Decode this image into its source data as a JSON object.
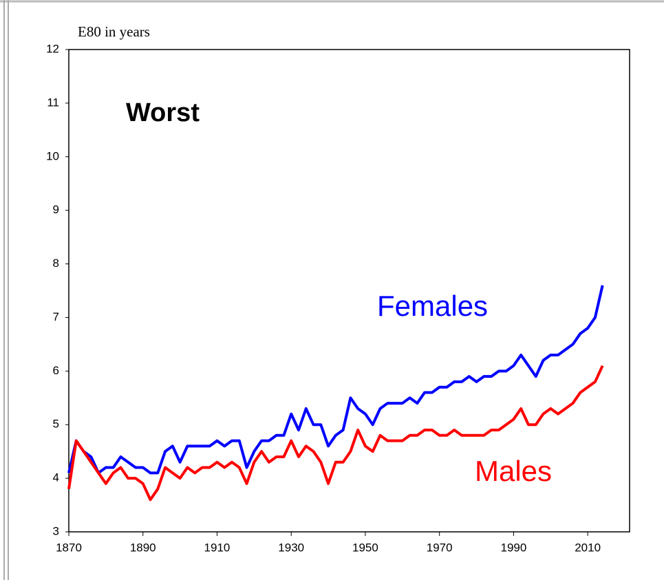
{
  "chart_data": {
    "type": "line",
    "y_label": "E80 in years",
    "annotation": "Worst",
    "x": [
      1870,
      1872,
      1874,
      1876,
      1878,
      1880,
      1882,
      1884,
      1886,
      1888,
      1890,
      1892,
      1894,
      1896,
      1898,
      1900,
      1902,
      1904,
      1906,
      1908,
      1910,
      1912,
      1914,
      1916,
      1918,
      1920,
      1922,
      1924,
      1926,
      1928,
      1930,
      1932,
      1934,
      1936,
      1938,
      1940,
      1942,
      1944,
      1946,
      1948,
      1950,
      1952,
      1954,
      1956,
      1958,
      1960,
      1962,
      1964,
      1966,
      1968,
      1970,
      1972,
      1974,
      1976,
      1978,
      1980,
      1982,
      1984,
      1986,
      1988,
      1990,
      1992,
      1994,
      1996,
      1998,
      2000,
      2002,
      2004,
      2006,
      2008,
      2010,
      2012,
      2014
    ],
    "series": [
      {
        "name": "Females",
        "color": "#0000ff",
        "values": [
          4.1,
          4.7,
          4.5,
          4.4,
          4.1,
          4.2,
          4.2,
          4.4,
          4.3,
          4.2,
          4.2,
          4.1,
          4.1,
          4.5,
          4.6,
          4.3,
          4.6,
          4.6,
          4.6,
          4.6,
          4.7,
          4.6,
          4.7,
          4.7,
          4.2,
          4.5,
          4.7,
          4.7,
          4.8,
          4.8,
          5.2,
          4.9,
          5.3,
          5.0,
          5.0,
          4.6,
          4.8,
          4.9,
          5.5,
          5.3,
          5.2,
          5.0,
          5.3,
          5.4,
          5.4,
          5.4,
          5.5,
          5.4,
          5.6,
          5.6,
          5.7,
          5.7,
          5.8,
          5.8,
          5.9,
          5.8,
          5.9,
          5.9,
          6.0,
          6.0,
          6.1,
          6.3,
          6.1,
          5.9,
          6.2,
          6.3,
          6.3,
          6.4,
          6.5,
          6.7,
          6.8,
          7.0,
          7.6
        ]
      },
      {
        "name": "Males",
        "color": "#ff0000",
        "values": [
          3.8,
          4.7,
          4.5,
          4.3,
          4.1,
          3.9,
          4.1,
          4.2,
          4.0,
          4.0,
          3.9,
          3.6,
          3.8,
          4.2,
          4.1,
          4.0,
          4.2,
          4.1,
          4.2,
          4.2,
          4.3,
          4.2,
          4.3,
          4.2,
          3.9,
          4.3,
          4.5,
          4.3,
          4.4,
          4.4,
          4.7,
          4.4,
          4.6,
          4.5,
          4.3,
          3.9,
          4.3,
          4.3,
          4.5,
          4.9,
          4.6,
          4.5,
          4.8,
          4.7,
          4.7,
          4.7,
          4.8,
          4.8,
          4.9,
          4.9,
          4.8,
          4.8,
          4.9,
          4.8,
          4.8,
          4.8,
          4.8,
          4.9,
          4.9,
          5.0,
          5.1,
          5.3,
          5.0,
          5.0,
          5.2,
          5.3,
          5.2,
          5.3,
          5.4,
          5.6,
          5.7,
          5.8,
          6.1
        ]
      }
    ],
    "xlim": [
      1870,
      2020
    ],
    "xticks": [
      1870,
      1890,
      1910,
      1930,
      1950,
      1970,
      1990,
      2010
    ],
    "ylim": [
      3,
      12
    ],
    "yticks": [
      3,
      4,
      5,
      6,
      7,
      8,
      9,
      10,
      11,
      12
    ]
  }
}
